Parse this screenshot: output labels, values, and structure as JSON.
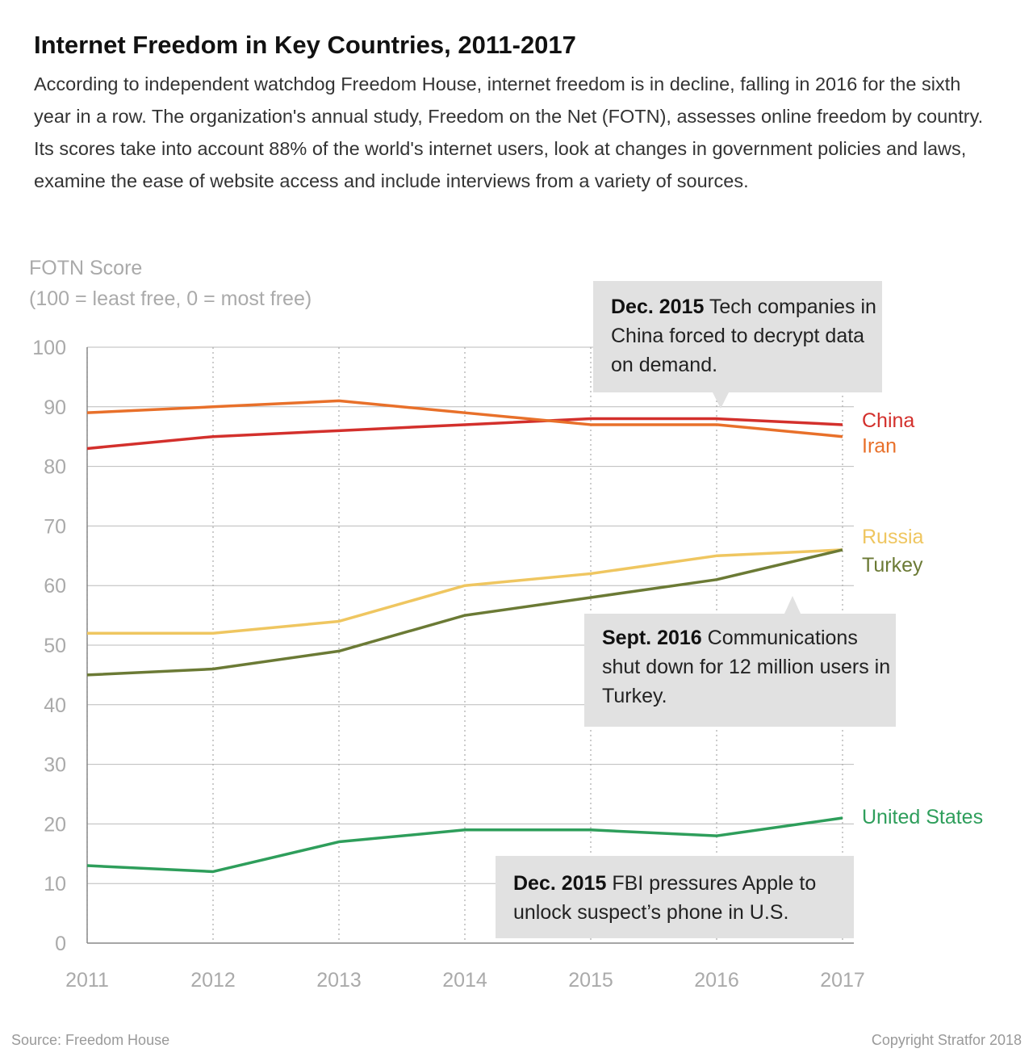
{
  "chart_data": {
    "type": "line",
    "title": "Internet Freedom in Key Countries, 2011-2017",
    "subtitle": "According to independent watchdog Freedom House, internet freedom is in decline, falling in 2016 for the sixth year in a row. The organization's annual study, Freedom on the Net (FOTN), assesses online freedom by country. Its scores take into account 88% of the world's internet users, look at changes in government policies and laws, examine the ease of website access and include interviews from a variety of sources.",
    "ylabel": "FOTN Score",
    "ylabel_note": "(100 = least free, 0 = most free)",
    "x": [
      2011,
      2012,
      2013,
      2014,
      2015,
      2016,
      2017
    ],
    "xlim": [
      2011,
      2017
    ],
    "xticks": [
      2011,
      2012,
      2013,
      2014,
      2015,
      2016,
      2017
    ],
    "ylim": [
      0,
      100
    ],
    "yticks": [
      0,
      10,
      20,
      30,
      40,
      50,
      60,
      70,
      80,
      90,
      100
    ],
    "grid": true,
    "series": [
      {
        "name": "China",
        "color": "#d3302c",
        "values": [
          83,
          85,
          86,
          87,
          88,
          88,
          87
        ]
      },
      {
        "name": "Iran",
        "color": "#e8702a",
        "values": [
          89,
          90,
          91,
          89,
          87,
          87,
          85
        ]
      },
      {
        "name": "Russia",
        "color": "#efc660",
        "values": [
          52,
          52,
          54,
          60,
          62,
          65,
          66
        ]
      },
      {
        "name": "Turkey",
        "color": "#6b7a35",
        "values": [
          45,
          46,
          49,
          55,
          58,
          61,
          66
        ]
      },
      {
        "name": "United States",
        "color": "#2e9e5b",
        "values": [
          13,
          12,
          17,
          19,
          19,
          18,
          21
        ]
      }
    ],
    "annotations": [
      {
        "bold": "Dec. 2015",
        "text": "Tech companies in China forced to decrypt data on demand."
      },
      {
        "bold": "Sept. 2016",
        "text": "Communications shut down for 12 million users in Turkey."
      },
      {
        "bold": "Dec. 2015",
        "text": "FBI pressures Apple to unlock suspect’s phone in U.S."
      }
    ],
    "source": "Source: Freedom House",
    "copyright": "Copyright Stratfor 2018"
  }
}
